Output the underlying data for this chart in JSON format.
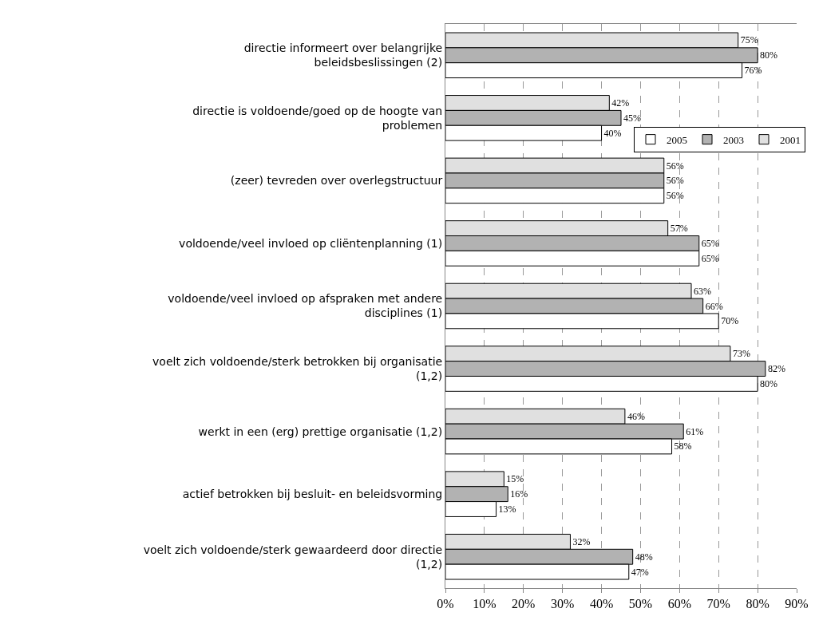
{
  "chart_data": {
    "type": "bar",
    "orientation": "horizontal",
    "categories": [
      "directie informeert over belangrijke beleidsbeslissingen (2)",
      "directie is voldoende/goed op de hoogte van problemen",
      "(zeer) tevreden over overlegstructuur",
      "voldoende/veel invloed op cliëntenplanning (1)",
      "voldoende/veel invloed op afspraken met andere disciplines (1)",
      "voelt zich voldoende/sterk betrokken bij organisatie (1,2)",
      "werkt in een (erg) prettige organisatie (1,2)",
      "actief betrokken bij besluit- en beleidsvorming",
      "voelt zich voldoende/sterk gewaardeerd door directie (1,2)"
    ],
    "series": [
      {
        "name": "2001",
        "color": "#e0e0e0",
        "values": [
          75,
          42,
          56,
          57,
          63,
          73,
          46,
          15,
          32
        ],
        "value_labels": [
          "75%",
          "42%",
          "56%",
          "57%",
          "63%",
          "73%",
          "46%",
          "15%",
          "32%"
        ]
      },
      {
        "name": "2003",
        "color": "#b2b2b2",
        "values": [
          80,
          45,
          56,
          65,
          66,
          82,
          61,
          16,
          48
        ],
        "value_labels": [
          "80%",
          "45%",
          "56%",
          "65%",
          "66%",
          "82%",
          "61%",
          "16%",
          "48%"
        ]
      },
      {
        "name": "2005",
        "color": "#ffffff",
        "values": [
          76,
          40,
          56,
          65,
          70,
          80,
          58,
          13,
          47
        ],
        "value_labels": [
          "76%",
          "40%",
          "56%",
          "65%",
          "70%",
          "80%",
          "58%",
          "13%",
          "47%"
        ]
      }
    ],
    "xlim": [
      0,
      90
    ],
    "xticks": [
      {
        "value": 0,
        "label": "0%"
      },
      {
        "value": 10,
        "label": "10%"
      },
      {
        "value": 20,
        "label": "20%"
      },
      {
        "value": 30,
        "label": "30%"
      },
      {
        "value": 40,
        "label": "40%"
      },
      {
        "value": 50,
        "label": "50%"
      },
      {
        "value": 60,
        "label": "60%"
      },
      {
        "value": 70,
        "label": "70%"
      },
      {
        "value": 80,
        "label": "80%"
      },
      {
        "value": 90,
        "label": "90%"
      }
    ],
    "grid": "x",
    "legend": "top right"
  }
}
